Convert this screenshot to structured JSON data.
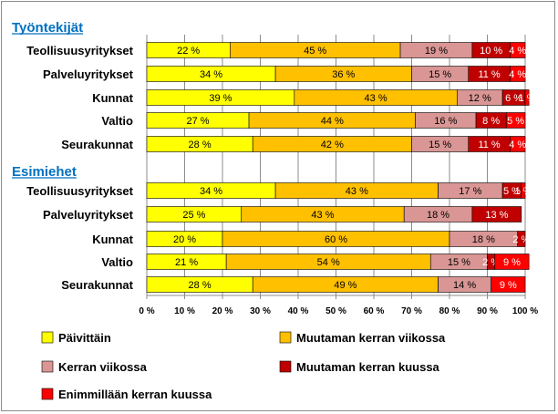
{
  "chart_data": {
    "type": "bar",
    "orientation": "horizontal",
    "stacked": true,
    "percent_scale": true,
    "xlim": [
      0,
      100
    ],
    "x_ticks": [
      "0 %",
      "10 %",
      "20 %",
      "30 %",
      "40 %",
      "50 %",
      "60 %",
      "70 %",
      "80 %",
      "90 %",
      "100 %"
    ],
    "grid": true,
    "legend_position": "bottom",
    "series": [
      {
        "name": "Päivittäin",
        "color": "#ffff00",
        "text_color": "#000000"
      },
      {
        "name": "Muutaman kerran viikossa",
        "color": "#ffc000",
        "text_color": "#000000"
      },
      {
        "name": "Kerran viikossa",
        "color": "#d99694",
        "text_color": "#000000"
      },
      {
        "name": "Muutaman kerran kuussa",
        "color": "#c00000",
        "text_color": "#ffffff"
      },
      {
        "name": "Enimmillään kerran kuussa",
        "color": "#ff0000",
        "text_color": "#ffffff"
      }
    ],
    "groups": [
      {
        "title": "Työntekijät",
        "categories": [
          {
            "label": "Teollisuusyritykset",
            "values": [
              22,
              45,
              19,
              10,
              4
            ]
          },
          {
            "label": "Palveluyritykset",
            "values": [
              34,
              36,
              15,
              11,
              4
            ]
          },
          {
            "label": "Kunnat",
            "values": [
              39,
              43,
              12,
              6,
              1
            ]
          },
          {
            "label": "Valtio",
            "values": [
              27,
              44,
              16,
              8,
              5
            ]
          },
          {
            "label": "Seurakunnat",
            "values": [
              28,
              42,
              15,
              11,
              4
            ]
          }
        ]
      },
      {
        "title": "Esimiehet",
        "categories": [
          {
            "label": "Teollisuusyritykset",
            "values": [
              34,
              43,
              17,
              5,
              1
            ]
          },
          {
            "label": "Palveluyritykset",
            "values": [
              25,
              43,
              18,
              13,
              0
            ]
          },
          {
            "label": "Kunnat",
            "values": [
              20,
              60,
              18,
              2,
              0
            ]
          },
          {
            "label": "Valtio",
            "values": [
              21,
              54,
              15,
              2,
              9
            ]
          },
          {
            "label": "Seurakunnat",
            "values": [
              28,
              49,
              14,
              0,
              9
            ]
          }
        ]
      }
    ]
  }
}
